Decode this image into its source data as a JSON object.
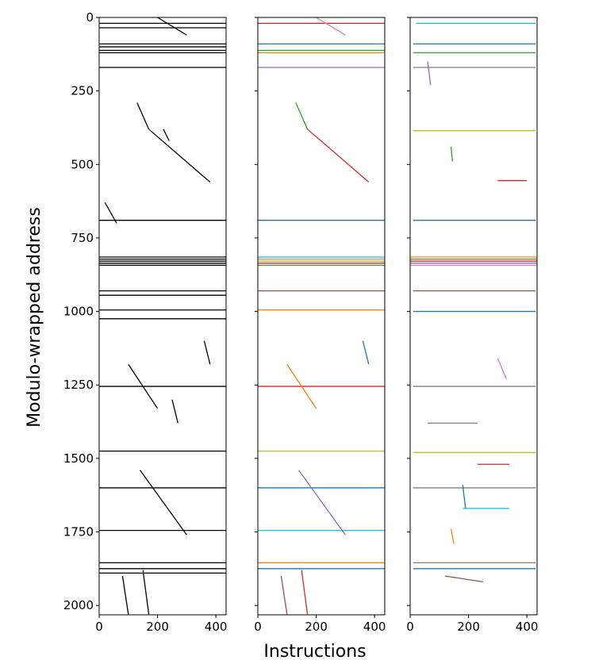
{
  "chart_data": [
    {
      "type": "segments",
      "ylabel": "Modulo-wrapped address",
      "xlim": [
        0,
        435
      ],
      "ylim": [
        2032,
        0
      ],
      "xticks": [
        0,
        200,
        400
      ],
      "yticks": [
        0,
        250,
        500,
        750,
        1000,
        1250,
        1500,
        1750,
        2000
      ],
      "lines": [
        {
          "x": [
            0,
            435
          ],
          "y": [
            20,
            20
          ],
          "color": "#000000"
        },
        {
          "x": [
            0,
            435
          ],
          "y": [
            35,
            35
          ],
          "color": "#000000"
        },
        {
          "x": [
            0,
            435
          ],
          "y": [
            90,
            90
          ],
          "color": "#000000"
        },
        {
          "x": [
            0,
            435
          ],
          "y": [
            100,
            100
          ],
          "color": "#000000"
        },
        {
          "x": [
            0,
            435
          ],
          "y": [
            112,
            112
          ],
          "color": "#000000"
        },
        {
          "x": [
            0,
            435
          ],
          "y": [
            120,
            120
          ],
          "color": "#000000"
        },
        {
          "x": [
            0,
            435
          ],
          "y": [
            170,
            170
          ],
          "color": "#000000"
        },
        {
          "x": [
            0,
            435
          ],
          "y": [
            690,
            690
          ],
          "color": "#000000"
        },
        {
          "x": [
            0,
            435
          ],
          "y": [
            815,
            815
          ],
          "color": "#000000"
        },
        {
          "x": [
            0,
            435
          ],
          "y": [
            822,
            822
          ],
          "color": "#000000"
        },
        {
          "x": [
            0,
            435
          ],
          "y": [
            829,
            829
          ],
          "color": "#000000"
        },
        {
          "x": [
            0,
            435
          ],
          "y": [
            836,
            836
          ],
          "color": "#000000"
        },
        {
          "x": [
            0,
            435
          ],
          "y": [
            843,
            843
          ],
          "color": "#000000"
        },
        {
          "x": [
            0,
            435
          ],
          "y": [
            930,
            930
          ],
          "color": "#000000"
        },
        {
          "x": [
            0,
            435
          ],
          "y": [
            945,
            945
          ],
          "color": "#000000"
        },
        {
          "x": [
            0,
            435
          ],
          "y": [
            995,
            995
          ],
          "color": "#000000"
        },
        {
          "x": [
            0,
            435
          ],
          "y": [
            1025,
            1025
          ],
          "color": "#000000"
        },
        {
          "x": [
            0,
            435
          ],
          "y": [
            1255,
            1255
          ],
          "color": "#000000"
        },
        {
          "x": [
            0,
            435
          ],
          "y": [
            1475,
            1475
          ],
          "color": "#000000"
        },
        {
          "x": [
            0,
            435
          ],
          "y": [
            1600,
            1600
          ],
          "color": "#000000"
        },
        {
          "x": [
            0,
            435
          ],
          "y": [
            1745,
            1745
          ],
          "color": "#000000"
        },
        {
          "x": [
            0,
            435
          ],
          "y": [
            1855,
            1855
          ],
          "color": "#000000"
        },
        {
          "x": [
            0,
            435
          ],
          "y": [
            1875,
            1875
          ],
          "color": "#000000"
        },
        {
          "x": [
            0,
            435
          ],
          "y": [
            1890,
            1890
          ],
          "color": "#000000"
        },
        {
          "x": [
            200,
            300
          ],
          "y": [
            0,
            60
          ],
          "color": "#000000"
        },
        {
          "x": [
            170,
            380
          ],
          "y": [
            380,
            560
          ],
          "color": "#000000"
        },
        {
          "x": [
            130,
            170
          ],
          "y": [
            290,
            380
          ],
          "color": "#000000"
        },
        {
          "x": [
            20,
            60
          ],
          "y": [
            630,
            700
          ],
          "color": "#000000"
        },
        {
          "x": [
            140,
            300
          ],
          "y": [
            1540,
            1760
          ],
          "color": "#000000"
        },
        {
          "x": [
            100,
            200
          ],
          "y": [
            1180,
            1330
          ],
          "color": "#000000"
        },
        {
          "x": [
            360,
            380
          ],
          "y": [
            1100,
            1180
          ],
          "color": "#000000"
        },
        {
          "x": [
            250,
            270
          ],
          "y": [
            1300,
            1380
          ],
          "color": "#000000"
        },
        {
          "x": [
            80,
            100
          ],
          "y": [
            1900,
            2030
          ],
          "color": "#000000"
        },
        {
          "x": [
            150,
            170
          ],
          "y": [
            1880,
            2030
          ],
          "color": "#000000"
        },
        {
          "x": [
            220,
            240
          ],
          "y": [
            380,
            420
          ],
          "color": "#000000"
        }
      ]
    },
    {
      "type": "segments",
      "xlabel": "Instructions",
      "xlim": [
        0,
        435
      ],
      "ylim": [
        2032,
        0
      ],
      "xticks": [
        0,
        200,
        400
      ],
      "lines": [
        {
          "x": [
            0,
            435
          ],
          "y": [
            20,
            20
          ],
          "color": "#d62728"
        },
        {
          "x": [
            0,
            435
          ],
          "y": [
            90,
            90
          ],
          "color": "#1f77b4"
        },
        {
          "x": [
            0,
            435
          ],
          "y": [
            112,
            112
          ],
          "color": "#2ca02c"
        },
        {
          "x": [
            0,
            435
          ],
          "y": [
            120,
            120
          ],
          "color": "#ff7f0e"
        },
        {
          "x": [
            0,
            435
          ],
          "y": [
            170,
            170
          ],
          "color": "#9467bd"
        },
        {
          "x": [
            0,
            435
          ],
          "y": [
            690,
            690
          ],
          "color": "#1f77b4"
        },
        {
          "x": [
            0,
            435
          ],
          "y": [
            815,
            815
          ],
          "color": "#17becf"
        },
        {
          "x": [
            0,
            435
          ],
          "y": [
            822,
            822
          ],
          "color": "#e377c2"
        },
        {
          "x": [
            0,
            435
          ],
          "y": [
            829,
            829
          ],
          "color": "#bcbd22"
        },
        {
          "x": [
            0,
            435
          ],
          "y": [
            836,
            836
          ],
          "color": "#d62728"
        },
        {
          "x": [
            0,
            435
          ],
          "y": [
            843,
            843
          ],
          "color": "#2ca02c"
        },
        {
          "x": [
            0,
            435
          ],
          "y": [
            930,
            930
          ],
          "color": "#8c564b"
        },
        {
          "x": [
            0,
            435
          ],
          "y": [
            995,
            995
          ],
          "color": "#ff7f0e"
        },
        {
          "x": [
            0,
            435
          ],
          "y": [
            1255,
            1255
          ],
          "color": "#d62728"
        },
        {
          "x": [
            0,
            435
          ],
          "y": [
            1475,
            1475
          ],
          "color": "#bcbd22"
        },
        {
          "x": [
            0,
            435
          ],
          "y": [
            1600,
            1600
          ],
          "color": "#1f77b4"
        },
        {
          "x": [
            0,
            435
          ],
          "y": [
            1745,
            1745
          ],
          "color": "#17becf"
        },
        {
          "x": [
            0,
            435
          ],
          "y": [
            1855,
            1855
          ],
          "color": "#ff7f0e"
        },
        {
          "x": [
            0,
            435
          ],
          "y": [
            1875,
            1875
          ],
          "color": "#1f77b4"
        },
        {
          "x": [
            200,
            300
          ],
          "y": [
            0,
            60
          ],
          "color": "#e377c2"
        },
        {
          "x": [
            170,
            380
          ],
          "y": [
            380,
            560
          ],
          "color": "#d62728"
        },
        {
          "x": [
            130,
            170
          ],
          "y": [
            290,
            380
          ],
          "color": "#2ca02c"
        },
        {
          "x": [
            140,
            300
          ],
          "y": [
            1540,
            1760
          ],
          "color": "#9467bd"
        },
        {
          "x": [
            100,
            200
          ],
          "y": [
            1180,
            1330
          ],
          "color": "#ff7f0e"
        },
        {
          "x": [
            360,
            380
          ],
          "y": [
            1100,
            1180
          ],
          "color": "#1f77b4"
        },
        {
          "x": [
            80,
            100
          ],
          "y": [
            1900,
            2030
          ],
          "color": "#8c564b"
        },
        {
          "x": [
            150,
            170
          ],
          "y": [
            1880,
            2030
          ],
          "color": "#d62728"
        }
      ]
    },
    {
      "type": "segments",
      "xlim": [
        0,
        435
      ],
      "ylim": [
        2032,
        0
      ],
      "xticks": [
        0,
        200,
        400
      ],
      "lines": [
        {
          "x": [
            20,
            430
          ],
          "y": [
            20,
            20
          ],
          "color": "#17becf"
        },
        {
          "x": [
            10,
            430
          ],
          "y": [
            90,
            90
          ],
          "color": "#1f77b4"
        },
        {
          "x": [
            10,
            430
          ],
          "y": [
            120,
            120
          ],
          "color": "#2ca02c"
        },
        {
          "x": [
            10,
            430
          ],
          "y": [
            170,
            170
          ],
          "color": "#7f7f7f"
        },
        {
          "x": [
            10,
            430
          ],
          "y": [
            385,
            385
          ],
          "color": "#bcbd22"
        },
        {
          "x": [
            10,
            430
          ],
          "y": [
            690,
            690
          ],
          "color": "#1f77b4"
        },
        {
          "x": [
            0,
            435
          ],
          "y": [
            815,
            815
          ],
          "color": "#ff7f0e"
        },
        {
          "x": [
            0,
            435
          ],
          "y": [
            822,
            822
          ],
          "color": "#2ca02c"
        },
        {
          "x": [
            0,
            435
          ],
          "y": [
            829,
            829
          ],
          "color": "#d62728"
        },
        {
          "x": [
            0,
            435
          ],
          "y": [
            836,
            836
          ],
          "color": "#9467bd"
        },
        {
          "x": [
            0,
            435
          ],
          "y": [
            843,
            843
          ],
          "color": "#e377c2"
        },
        {
          "x": [
            10,
            430
          ],
          "y": [
            930,
            930
          ],
          "color": "#8c564b"
        },
        {
          "x": [
            10,
            430
          ],
          "y": [
            1000,
            1000
          ],
          "color": "#1f77b4"
        },
        {
          "x": [
            10,
            430
          ],
          "y": [
            1255,
            1255
          ],
          "color": "#7f7f7f"
        },
        {
          "x": [
            10,
            430
          ],
          "y": [
            1480,
            1480
          ],
          "color": "#bcbd22"
        },
        {
          "x": [
            10,
            430
          ],
          "y": [
            1600,
            1600
          ],
          "color": "#7f7f7f"
        },
        {
          "x": [
            10,
            430
          ],
          "y": [
            1855,
            1855
          ],
          "color": "#7f7f7f"
        },
        {
          "x": [
            10,
            430
          ],
          "y": [
            1875,
            1875
          ],
          "color": "#1f77b4"
        },
        {
          "x": [
            140,
            145
          ],
          "y": [
            440,
            490
          ],
          "color": "#2ca02c"
        },
        {
          "x": [
            300,
            400
          ],
          "y": [
            555,
            555
          ],
          "color": "#d62728"
        },
        {
          "x": [
            60,
            70
          ],
          "y": [
            150,
            230
          ],
          "color": "#9467bd"
        },
        {
          "x": [
            300,
            330
          ],
          "y": [
            1160,
            1230
          ],
          "color": "#e377c2"
        },
        {
          "x": [
            180,
            340
          ],
          "y": [
            1670,
            1670
          ],
          "color": "#17becf"
        },
        {
          "x": [
            180,
            190
          ],
          "y": [
            1590,
            1670
          ],
          "color": "#1f77b4"
        },
        {
          "x": [
            120,
            250
          ],
          "y": [
            1900,
            1920
          ],
          "color": "#8c564b"
        },
        {
          "x": [
            60,
            230
          ],
          "y": [
            1380,
            1380
          ],
          "color": "#7f7f7f"
        },
        {
          "x": [
            230,
            340
          ],
          "y": [
            1520,
            1520
          ],
          "color": "#d62728"
        },
        {
          "x": [
            140,
            150
          ],
          "y": [
            1740,
            1790
          ],
          "color": "#ff7f0e"
        }
      ]
    }
  ]
}
